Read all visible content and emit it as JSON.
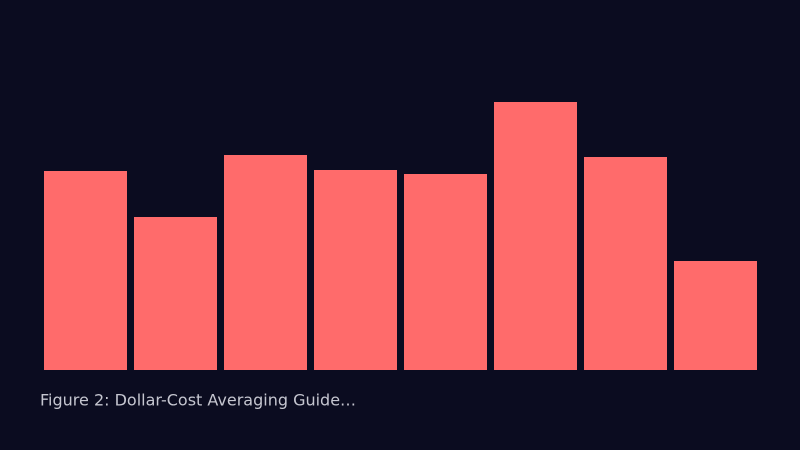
{
  "chart_data": {
    "type": "bar",
    "caption": "Figure 2: Dollar-Cost Averaging Guide…",
    "values": [
      199,
      153,
      215,
      200,
      196,
      268,
      213,
      109
    ],
    "color": "#ff6b6b"
  }
}
